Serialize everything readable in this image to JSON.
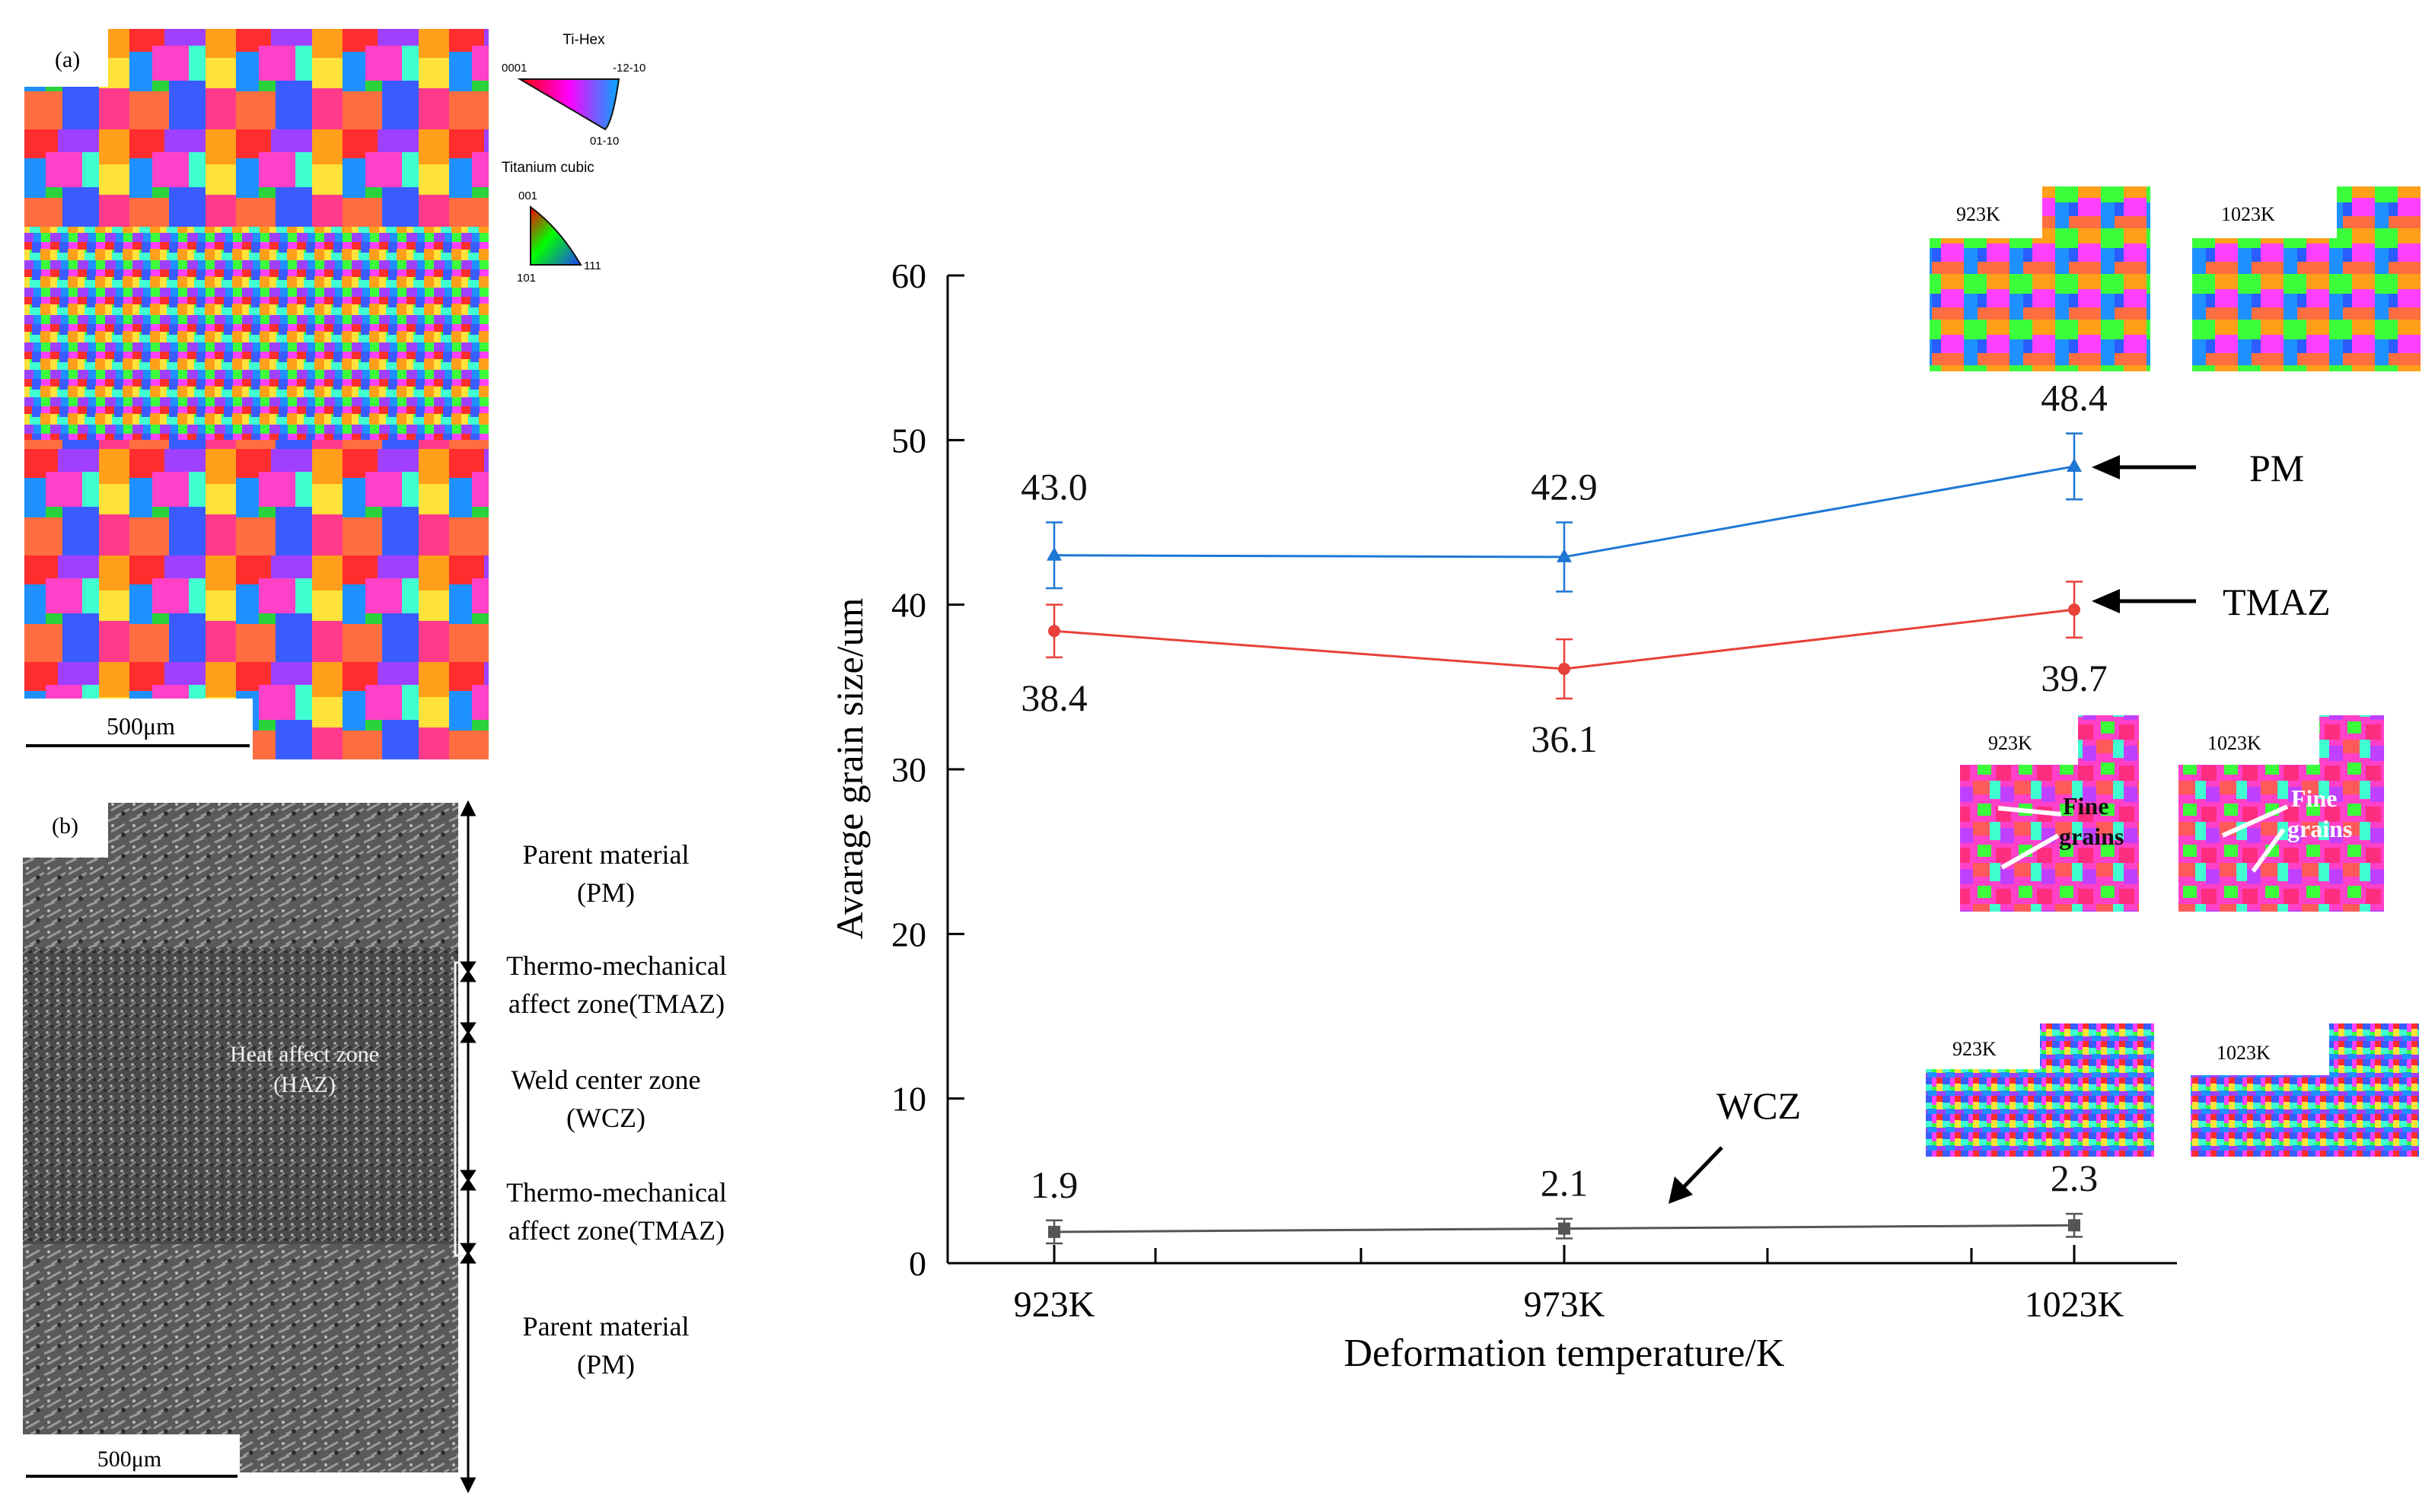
{
  "panel_a": {
    "label": "(a)",
    "scale_bar": "500μm",
    "legend": {
      "hex_title": "Ti-Hex",
      "hex_corner_top_left": "0001",
      "hex_corner_top_right": "-12-10",
      "hex_corner_bottom": "01-10",
      "cubic_title": "Titanium cubic",
      "cubic_corner_top": "001",
      "cubic_corner_bottom_left": "101",
      "cubic_corner_bottom_right": "111"
    }
  },
  "panel_b": {
    "label": "(b)",
    "scale_bar": "500μm",
    "haz_line1": "Heat affect zone",
    "haz_line2": "(HAZ)",
    "zones": [
      {
        "line1": "Parent material",
        "line2": "(PM)"
      },
      {
        "line1": "Thermo-mechanical",
        "line2": "affect zone(TMAZ)"
      },
      {
        "line1": "Weld center zone",
        "line2": "(WCZ)"
      },
      {
        "line1": "Thermo-mechanical",
        "line2": "affect zone(TMAZ)"
      },
      {
        "line1": "Parent material",
        "line2": "(PM)"
      }
    ]
  },
  "insets": {
    "pm_923": "923K",
    "pm_1023": "1023K",
    "tmaz_923": "923K",
    "tmaz_1023": "1023K",
    "wcz_923": "923K",
    "wcz_1023": "1023K",
    "fine_line1": "Fine",
    "fine_line2": "grains"
  },
  "chart_data": {
    "type": "line",
    "title": "",
    "xlabel": "Deformation temperature/K",
    "ylabel": "Avarage grain size/um",
    "categories": [
      "923K",
      "973K",
      "1023K"
    ],
    "ylim": [
      0,
      60
    ],
    "yticks": [
      "0",
      "10",
      "20",
      "30",
      "40",
      "50",
      "60"
    ],
    "series": [
      {
        "name": "PM",
        "color": "#1f77d4",
        "marker": "triangle",
        "values": [
          43.0,
          42.9,
          48.4
        ],
        "errors": [
          2.0,
          2.1,
          2.0
        ],
        "labels": [
          "43.0",
          "42.9",
          "48.4"
        ],
        "label_pos": "above"
      },
      {
        "name": "TMAZ",
        "color": "#e8413a",
        "marker": "circle",
        "values": [
          38.4,
          36.1,
          39.7
        ],
        "errors": [
          1.6,
          1.8,
          1.7
        ],
        "labels": [
          "38.4",
          "36.1",
          "39.7"
        ],
        "label_pos": "below"
      },
      {
        "name": "WCZ",
        "color": "#555555",
        "marker": "square",
        "values": [
          1.9,
          2.1,
          2.3
        ],
        "errors": [
          0.7,
          0.6,
          0.7
        ],
        "labels": [
          "1.9",
          "2.1",
          "2.3"
        ],
        "label_pos": "above"
      }
    ]
  }
}
